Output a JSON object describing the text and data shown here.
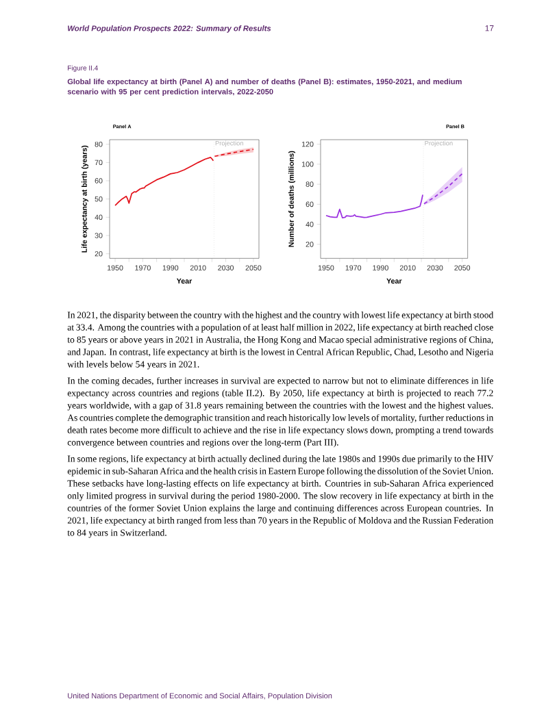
{
  "chart_data": [
    {
      "type": "line",
      "title": "Panel A",
      "xlabel": "Year",
      "ylabel": "Life expectancy at birth (years)",
      "xlim": [
        1946,
        2054
      ],
      "ylim": [
        17.5,
        82.5
      ],
      "xticks": [
        1950,
        {
          "value": 1960,
          "label": null
        },
        1970,
        {
          "value": 1980,
          "label": null
        },
        1990,
        {
          "value": 2000,
          "label": null
        },
        2010,
        {
          "value": 2020,
          "label": null
        },
        2030,
        {
          "value": 2040,
          "label": null
        },
        2050
      ],
      "yticks": [
        20,
        30,
        40,
        50,
        60,
        70,
        80
      ],
      "series": [
        {
          "color": "#e3121b",
          "line_style": "solid",
          "x": [
            1950,
            1952,
            1955,
            1958,
            1959,
            1960,
            1962,
            1964,
            1965,
            1968,
            1970,
            1971,
            1972,
            1975,
            1980,
            1985,
            1990,
            1995,
            2000,
            2005,
            2010,
            2015,
            2019,
            2020,
            2021
          ],
          "values": [
            46.5,
            48,
            50,
            51.5,
            50,
            47.7,
            53,
            54,
            53.8,
            55.5,
            56,
            56,
            57,
            58.3,
            60.5,
            62,
            63.8,
            64.5,
            66,
            68,
            70,
            71.8,
            72.8,
            72,
            71
          ]
        },
        {
          "color": "#e3121b",
          "line_style": "dashed",
          "x": [
            2022,
            2030,
            2040,
            2050
          ],
          "values": [
            73.4,
            74.6,
            76,
            77.2
          ],
          "lower": [
            73,
            73.6,
            74.7,
            75.6
          ],
          "upper": [
            73.8,
            75.5,
            77.2,
            78.3
          ]
        }
      ],
      "ref_lines": [
        {
          "axis": "x",
          "value": 2021.5,
          "label": "Projection",
          "color": "#b0b0b0",
          "line_style": "dotted"
        }
      ],
      "annotations": [
        "World Population Prospects 2022: Summary of Results",
        "17",
        "Figure II.4",
        "Global life expectancy at birth (Panel A) and number of deaths (Panel B): estimates, 1950-2021, and medium scenario with 95 per cent prediction intervals, 2022-2050",
        "In 2021, the disparity between the country with the highest and the country with lowest life expectancy at birth stood at 33.4. Among the countries with a population of at least half million in 2022, life expectancy at birth reached close to 85 years or above years in 2021 in Australia, the Hong Kong and Macao special administrative regions of China, and Japan. In contrast, life expectancy at birth is the lowest in Central African Republic, Chad, Lesotho and Nigeria with levels below 54 years in 2021.",
        "In the coming decades, further increases in survival are expected to narrow but not to eliminate differences in life expectancy across countries and regions (table II.2). By 2050, life expectancy at birth is projected to reach 77.2 years worldwide, with a gap of 31.8 years remaining between the countries with the lowest and the highest values. As countries complete the demographic transition and reach historically low levels of mortality, further reductions in death rates become more difficult to achieve and the rise in life expectancy slows down, prompting a trend towards convergence between countries and regions over the long-term (Part III).",
        "In some regions, life expectancy at birth actually declined during the late 1980s and 1990s due primarily to the HIV epidemic in sub-Saharan Africa and the health crisis in Eastern Europe following the dissolution of the Soviet Union. These setbacks have long-lasting effects on life expectancy at birth. Countries in sub-Saharan Africa experienced only limited progress in survival during the period 1980-2000. The slow recovery in life expectancy at birth in the countries of the former Soviet Union explains the large and continuing differences across European countries. In 2021, life expectancy at birth ranged from less than 70 years in the Republic of Moldova and the Russian Federation to 84 years in Switzerland.",
        "United Nations Department of Economic and Social Affairs, Population Division"
      ]
    },
    {
      "type": "line",
      "title": "Panel B",
      "xlabel": "Year",
      "ylabel": "Number of deaths (millions)",
      "xlim": [
        1946,
        2054
      ],
      "ylim": [
        6,
        124.5
      ],
      "xticks": [
        1950,
        {
          "value": 1960,
          "label": null
        },
        1970,
        {
          "value": 1980,
          "label": null
        },
        1990,
        {
          "value": 2000,
          "label": null
        },
        2010,
        {
          "value": 2020,
          "label": null
        },
        2030,
        {
          "value": 2040,
          "label": null
        },
        2050
      ],
      "yticks": [
        20,
        40,
        60,
        80,
        100,
        120
      ],
      "series": [
        {
          "color": "#9b30e0",
          "line_style": "solid",
          "x": [
            1950,
            1953,
            1956,
            1958,
            1960,
            1962,
            1964,
            1965,
            1968,
            1970,
            1971,
            1972,
            1975,
            1978,
            1980,
            1985,
            1990,
            1994,
            2000,
            2005,
            2010,
            2015,
            2019,
            2020,
            2021
          ],
          "values": [
            48.8,
            47.5,
            47,
            47,
            55,
            46.5,
            47,
            48.5,
            48,
            48.3,
            49.5,
            48,
            47.5,
            46.8,
            47,
            48.5,
            50,
            51.5,
            52,
            53,
            54.5,
            56,
            58,
            63,
            69.5
          ]
        },
        {
          "color": "#9b30e0",
          "line_style": "dashed",
          "x": [
            2022,
            2030,
            2040,
            2050
          ],
          "values": [
            60.5,
            67.5,
            78,
            90.5
          ],
          "lower": [
            59,
            64,
            72,
            82.3
          ],
          "upper": [
            62,
            71,
            84,
            97.2
          ]
        }
      ],
      "ref_lines": [
        {
          "axis": "x",
          "value": 2021.5,
          "label": "Projection",
          "color": "#b0b0b0",
          "line_style": "dotted"
        }
      ]
    }
  ]
}
